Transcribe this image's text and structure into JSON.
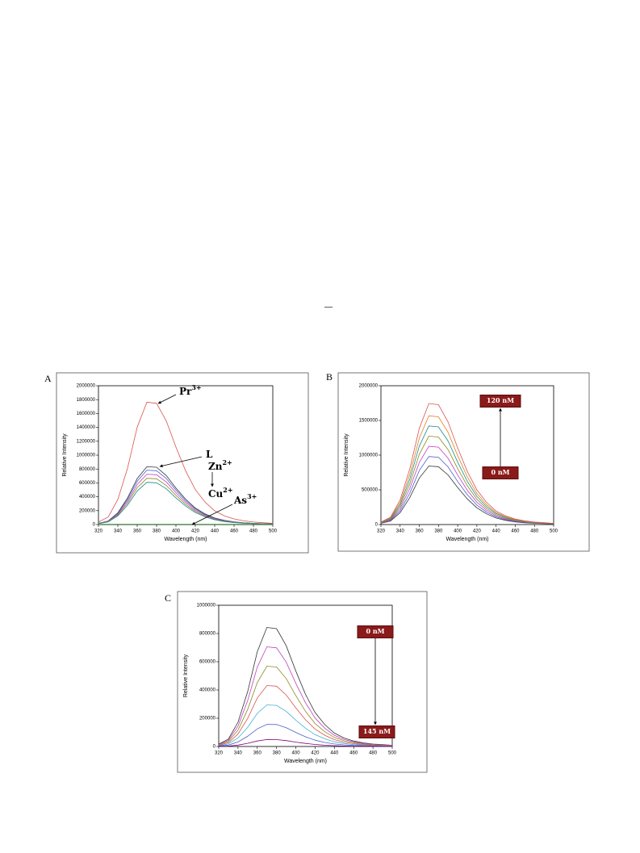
{
  "page_text": "—",
  "chart_data": [
    {
      "type": "line",
      "panel": "A",
      "xlabel": "Wavelength (nm)",
      "ylabel": "Relative Intensity",
      "x": [
        320,
        330,
        340,
        350,
        360,
        370,
        380,
        390,
        400,
        410,
        420,
        430,
        440,
        450,
        460,
        470,
        480,
        490,
        500
      ],
      "xlim": [
        320,
        500
      ],
      "xticks": [
        320,
        340,
        360,
        380,
        400,
        420,
        440,
        460,
        480,
        500
      ],
      "ylim": [
        0,
        2000000
      ],
      "yticks": [
        0,
        200000,
        400000,
        600000,
        800000,
        1000000,
        1200000,
        1400000,
        1600000,
        1800000,
        2000000
      ],
      "series": [
        {
          "color": "#d9534f",
          "values": [
            36000,
            108000,
            360000,
            810000,
            1404000,
            1764000,
            1746000,
            1494000,
            1116000,
            774000,
            504000,
            324000,
            198000,
            126000,
            81000,
            54000,
            36000,
            27000,
            18000
          ]
        },
        {
          "color": "#333333",
          "values": [
            17000,
            51000,
            170000,
            383000,
            663000,
            833000,
            825000,
            706000,
            527000,
            366000,
            238000,
            153000,
            94000,
            60000,
            38000,
            26000,
            17000,
            13000,
            9000
          ]
        },
        {
          "color": "#4a5fd0",
          "values": [
            16000,
            48000,
            160000,
            360000,
            624000,
            784000,
            776000,
            664000,
            496000,
            344000,
            224000,
            144000,
            88000,
            56000,
            36000,
            24000,
            16000,
            12000,
            8000
          ]
        },
        {
          "color": "#c040c0",
          "values": [
            14800,
            44400,
            148000,
            333000,
            577200,
            725200,
            717800,
            614200,
            458800,
            318200,
            207200,
            133200,
            81400,
            51800,
            33300,
            22200,
            14800,
            11100,
            7400
          ]
        },
        {
          "color": "#8a8a20",
          "values": [
            13600,
            40800,
            136000,
            306000,
            530400,
            666400,
            659600,
            564400,
            421600,
            292400,
            190400,
            122400,
            74800,
            47600,
            30600,
            20400,
            13600,
            10200,
            6800
          ]
        },
        {
          "color": "#208a8a",
          "values": [
            12400,
            37200,
            124000,
            279000,
            483600,
            607600,
            601400,
            514600,
            384400,
            266600,
            173600,
            111600,
            68200,
            43400,
            27900,
            18600,
            12400,
            9300,
            6200
          ]
        },
        {
          "color": "#2ca02c",
          "values": [
            5000,
            5000,
            5000,
            5000,
            5000,
            5000,
            5000,
            5000,
            5000,
            5000,
            5000,
            5000,
            5000,
            5000,
            5000,
            5000,
            5000,
            5000,
            5000
          ]
        }
      ],
      "annotations": [
        {
          "text": "Pr",
          "sup": "3+"
        },
        {
          "text": "L"
        },
        {
          "text": "Zn",
          "sup": "2+"
        },
        {
          "text": "Cu",
          "sup": "2+"
        },
        {
          "text": "As",
          "sup": "3+"
        }
      ]
    },
    {
      "type": "line",
      "panel": "B",
      "xlabel": "Wavelength (nm)",
      "ylabel": "Relative Intensity",
      "x": [
        320,
        330,
        340,
        350,
        360,
        370,
        380,
        390,
        400,
        410,
        420,
        430,
        440,
        450,
        460,
        470,
        480,
        490,
        500
      ],
      "xlim": [
        320,
        500
      ],
      "xticks": [
        320,
        340,
        360,
        380,
        400,
        420,
        440,
        460,
        480,
        500
      ],
      "ylim": [
        0,
        2000000
      ],
      "yticks": [
        0,
        500000,
        1000000,
        1500000,
        2000000
      ],
      "series": [
        {
          "color": "#333333",
          "values": [
            17200,
            51600,
            172000,
            387000,
            670800,
            842800,
            834200,
            713800,
            533200,
            369800,
            240800,
            154800,
            94600,
            60200,
            38700,
            25800,
            17200,
            12900,
            8600
          ]
        },
        {
          "color": "#4a5fd0",
          "values": [
            20000,
            60000,
            200000,
            450000,
            780000,
            980000,
            970000,
            830000,
            620000,
            430000,
            280000,
            180000,
            110000,
            70000,
            45000,
            30000,
            20000,
            15000,
            10000
          ]
        },
        {
          "color": "#c040c0",
          "values": [
            23000,
            69000,
            230000,
            517500,
            897000,
            1127000,
            1115500,
            954500,
            713000,
            494500,
            322000,
            207000,
            126500,
            80500,
            51750,
            34500,
            23000,
            17250,
            11500
          ]
        },
        {
          "color": "#8a8a20",
          "values": [
            26000,
            78000,
            260000,
            585000,
            1014000,
            1274000,
            1261000,
            1079000,
            806000,
            559000,
            364000,
            234000,
            143000,
            91000,
            58500,
            39000,
            26000,
            19500,
            13000
          ]
        },
        {
          "color": "#208a8a",
          "values": [
            29000,
            87000,
            290000,
            652500,
            1131000,
            1421000,
            1406500,
            1203500,
            899000,
            623500,
            406000,
            261000,
            159500,
            101500,
            65250,
            43500,
            29000,
            21750,
            14500
          ]
        },
        {
          "color": "#e08020",
          "values": [
            32000,
            96000,
            320000,
            720000,
            1248000,
            1568000,
            1552000,
            1328000,
            992000,
            688000,
            448000,
            288000,
            176000,
            112000,
            72000,
            48000,
            32000,
            24000,
            16000
          ]
        },
        {
          "color": "#d9534f",
          "values": [
            35600,
            106800,
            356000,
            801000,
            1388400,
            1744400,
            1726600,
            1477400,
            1103600,
            765400,
            498400,
            320400,
            195800,
            124600,
            80100,
            53400,
            35600,
            26700,
            17800
          ]
        }
      ],
      "annotations": [
        {
          "text": "120 nM"
        },
        {
          "text": "0 nM"
        }
      ]
    },
    {
      "type": "line",
      "panel": "C",
      "xlabel": "Wavelength (nm)",
      "ylabel": "Relative Intensity",
      "x": [
        320,
        330,
        340,
        350,
        360,
        370,
        380,
        390,
        400,
        410,
        420,
        430,
        440,
        450,
        460,
        470,
        480,
        490,
        500
      ],
      "xlim": [
        320,
        500
      ],
      "xticks": [
        320,
        340,
        360,
        380,
        400,
        420,
        440,
        460,
        480,
        500
      ],
      "ylim": [
        0,
        1000000
      ],
      "yticks": [
        0,
        200000,
        400000,
        600000,
        800000,
        1000000
      ],
      "series": [
        {
          "color": "#333333",
          "values": [
            17200,
            51600,
            172000,
            387000,
            670800,
            842800,
            834200,
            713800,
            533200,
            369800,
            240800,
            154800,
            94600,
            60200,
            38700,
            25800,
            17200,
            12900,
            8600
          ]
        },
        {
          "color": "#c040c0",
          "values": [
            14400,
            43200,
            144000,
            324000,
            561600,
            705600,
            698400,
            597600,
            446400,
            309600,
            201600,
            129600,
            79200,
            50400,
            32400,
            21600,
            14400,
            10800,
            7200
          ]
        },
        {
          "color": "#8a8a20",
          "values": [
            11600,
            34800,
            116000,
            261000,
            452400,
            568400,
            562600,
            481400,
            359600,
            249400,
            162400,
            104400,
            63800,
            40600,
            26100,
            17400,
            11600,
            8700,
            5800
          ]
        },
        {
          "color": "#d9534f",
          "values": [
            8800,
            26400,
            88000,
            198000,
            343200,
            431200,
            426800,
            365200,
            272800,
            189200,
            123200,
            79200,
            48400,
            30800,
            19800,
            13200,
            8800,
            6600,
            4400
          ]
        },
        {
          "color": "#40b0d0",
          "values": [
            6000,
            18000,
            60000,
            135000,
            234000,
            294000,
            291000,
            249000,
            186000,
            129000,
            84000,
            54000,
            33000,
            21000,
            13500,
            9000,
            6000,
            4500,
            3000
          ]
        },
        {
          "color": "#4a5fd0",
          "values": [
            3200,
            9600,
            32000,
            72000,
            124800,
            156800,
            155200,
            132800,
            99200,
            68800,
            44800,
            28800,
            17600,
            11200,
            7200,
            4800,
            3200,
            2400,
            1600
          ]
        },
        {
          "color": "#800080",
          "values": [
            1000,
            3000,
            10000,
            22500,
            39000,
            49000,
            48500,
            41500,
            31000,
            21500,
            14000,
            9000,
            5500,
            3500,
            2250,
            1500,
            1000,
            750,
            500
          ]
        }
      ],
      "annotations": [
        {
          "text": "0 nM"
        },
        {
          "text": "145 nM"
        }
      ]
    }
  ]
}
